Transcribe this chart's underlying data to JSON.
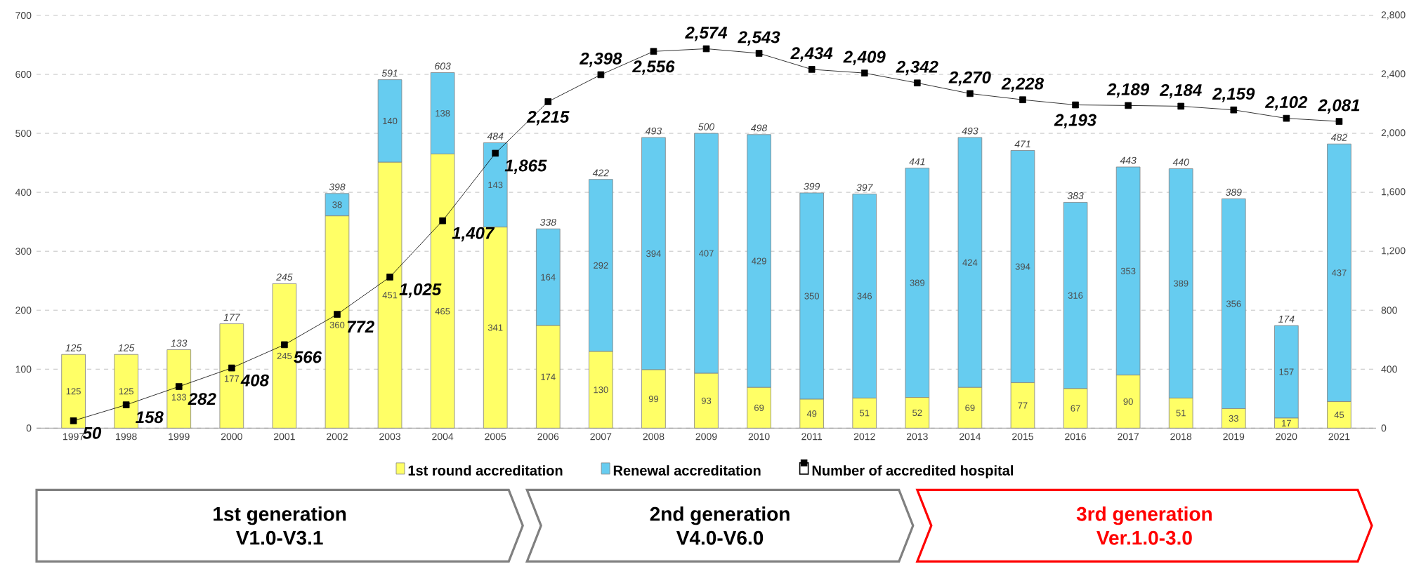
{
  "chart_data": {
    "type": "bar",
    "stacked": true,
    "categories": [
      "1997",
      "1998",
      "1999",
      "2000",
      "2001",
      "2002",
      "2003",
      "2004",
      "2005",
      "2006",
      "2007",
      "2008",
      "2009",
      "2010",
      "2011",
      "2012",
      "2013",
      "2014",
      "2015",
      "2016",
      "2017",
      "2018",
      "2019",
      "2020",
      "2021"
    ],
    "series": [
      {
        "name": "1st round accreditation",
        "color": "#ffff66",
        "values": [
          125,
          125,
          133,
          177,
          245,
          360,
          451,
          465,
          341,
          174,
          130,
          99,
          93,
          69,
          49,
          51,
          52,
          69,
          77,
          67,
          90,
          51,
          33,
          17,
          45
        ],
        "value_labels": [
          "125",
          "125",
          "133",
          "177",
          "245",
          "360",
          "451",
          "465",
          "341",
          "174",
          "130",
          "99",
          "93",
          "69",
          "49",
          "51",
          "52",
          "69",
          "77",
          "67",
          "90",
          "51",
          "33",
          "17",
          "45"
        ]
      },
      {
        "name": "Renewal accreditation",
        "color": "#66ccf0",
        "values": [
          0,
          0,
          0,
          0,
          0,
          38,
          140,
          138,
          143,
          164,
          292,
          394,
          407,
          429,
          350,
          346,
          389,
          424,
          394,
          316,
          353,
          389,
          356,
          157,
          437
        ],
        "value_labels": [
          null,
          null,
          null,
          null,
          null,
          "38",
          "140",
          "138",
          "143",
          "164",
          "292",
          "394",
          "407",
          "429",
          "350",
          "346",
          "389",
          "424",
          "394",
          "316",
          "353",
          "389",
          "356",
          "157",
          "437"
        ]
      },
      {
        "name": "Number of accredited hospital",
        "type": "line",
        "axis": "y2",
        "color": "#000000",
        "marker": "square",
        "values": [
          50,
          158,
          282,
          408,
          566,
          772,
          1025,
          1407,
          1865,
          2215,
          2398,
          2556,
          2574,
          2543,
          2434,
          2409,
          2342,
          2270,
          2228,
          2193,
          2189,
          2184,
          2159,
          2102,
          2081
        ],
        "value_labels": [
          "50",
          "158",
          "282",
          "408",
          "566",
          "772",
          "1,025",
          "1,407",
          "1,865",
          "2,215",
          "2,398",
          "2,556",
          "2,574",
          "2,543",
          "2,434",
          "2,409",
          "2,342",
          "2,270",
          "2,228",
          "2,193",
          "2,189",
          "2,184",
          "2,159",
          "2,102",
          "2,081"
        ]
      }
    ],
    "totals": [
      "125",
      "125",
      "133",
      "177",
      "245",
      "398",
      "591",
      "603",
      "484",
      "338",
      "422",
      "493",
      "500",
      "498",
      "399",
      "397",
      "441",
      "493",
      "471",
      "383",
      "443",
      "440",
      "389",
      "174",
      "482"
    ],
    "ylim": [
      0,
      700
    ],
    "yticks": [
      0,
      100,
      200,
      300,
      400,
      500,
      600,
      700
    ],
    "y2lim": [
      0,
      2800
    ],
    "y2ticks": [
      0,
      400,
      800,
      {
        "value": 1200,
        "label": "1,200"
      },
      {
        "value": 1600,
        "label": "1,600"
      },
      {
        "value": 2000,
        "label": "2,000"
      },
      {
        "value": 2400,
        "label": "2,400"
      },
      {
        "value": 2800,
        "label": "2,800"
      }
    ],
    "grid": "y",
    "legend": "bottom",
    "annotations": [
      "1st generation",
      "V1.0-V3.1",
      "2nd generation",
      "V4.0-V6.0",
      "3rd generation",
      "Ver.1.0-3.0"
    ]
  }
}
